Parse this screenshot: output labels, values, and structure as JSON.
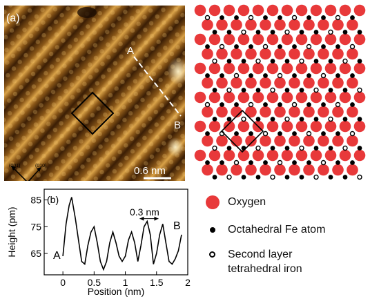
{
  "panel_a": {
    "label": "(a)",
    "point_a": "A",
    "point_b": "B",
    "dir_001": "(001)",
    "dir_010": "(010)",
    "scale_bar": "0.6 nm"
  },
  "legend": {
    "oxygen": "Oxygen",
    "octahedral": "Octahedral Fe atom",
    "second_layer_line1": "Second layer",
    "second_layer_line2": "tetrahedral iron"
  },
  "colors": {
    "oxygen": "#e8393a",
    "iron": "#000000",
    "stm_dark": "#3b1e05",
    "stm_bright": "#d9a248"
  },
  "chart_data": {
    "type": "line",
    "label": "(b)",
    "xlabel": "Position (nm)",
    "ylabel": "Height (pm)",
    "xlim": [
      -0.3,
      2.0
    ],
    "ylim": [
      57,
      89
    ],
    "xticks": [
      "0",
      "0.5",
      "1",
      "1.5",
      "2"
    ],
    "xtick_values": [
      0,
      0.5,
      1,
      1.5,
      2
    ],
    "yticks": [
      "65",
      "75",
      "85"
    ],
    "ytick_values": [
      65,
      75,
      85
    ],
    "annotation": "0.3 nm",
    "start_label": "A",
    "end_label": "B",
    "x": [
      0.0,
      0.05,
      0.1,
      0.14,
      0.2,
      0.25,
      0.3,
      0.35,
      0.4,
      0.45,
      0.5,
      0.55,
      0.6,
      0.65,
      0.7,
      0.75,
      0.8,
      0.85,
      0.9,
      0.95,
      1.0,
      1.05,
      1.1,
      1.15,
      1.2,
      1.25,
      1.3,
      1.35,
      1.4,
      1.45,
      1.5,
      1.55,
      1.6,
      1.65,
      1.7,
      1.75,
      1.8,
      1.85,
      1.9
    ],
    "y": [
      64,
      76,
      83,
      86,
      78,
      70,
      62,
      61,
      68,
      73,
      75,
      69,
      62,
      59,
      62,
      69,
      73,
      69,
      64,
      62,
      64,
      70,
      73,
      69,
      62,
      68,
      75,
      77,
      72,
      61,
      65,
      72,
      76,
      69,
      62,
      61,
      63,
      66,
      72
    ]
  }
}
